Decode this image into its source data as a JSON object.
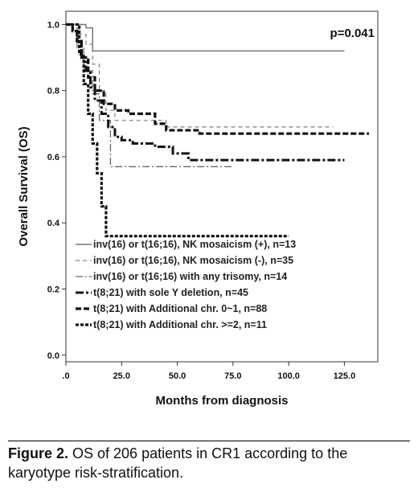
{
  "chart_data": {
    "type": "line",
    "step": true,
    "ylabel": "Overall Survival (OS)",
    "xlabel": "Months from diagnosis",
    "annotation": "p=0.041",
    "xlim": [
      0,
      140
    ],
    "ylim": [
      -0.02,
      1.04
    ],
    "x_ticks": [
      0,
      25,
      50,
      75,
      100,
      125
    ],
    "x_tick_labels": [
      ".0",
      "25.0",
      "50.0",
      "75.0",
      "100.0",
      "125.0"
    ],
    "y_ticks": [
      0,
      0.2,
      0.4,
      0.6,
      0.8,
      1.0
    ],
    "y_tick_labels": [
      "0.0",
      "0.2",
      "0.4",
      "0.6",
      "0.8",
      "1.0"
    ],
    "grid": false,
    "legend_position": "bottom-left",
    "series": [
      {
        "name": "inv(16) or t(16;16), NK mosaicism (+), n=13",
        "color": "#777777",
        "dash": "solid",
        "x": [
          0,
          9,
          12,
          125
        ],
        "y": [
          1.0,
          0.99,
          0.92,
          0.92
        ]
      },
      {
        "name": "inv(16) or t(16;16), NK mosaicism (-), n=35",
        "color": "#888888",
        "dash": "dashed",
        "x": [
          0,
          6,
          9,
          12,
          15,
          18,
          22,
          30,
          45,
          120
        ],
        "y": [
          1.0,
          0.97,
          0.94,
          0.88,
          0.8,
          0.74,
          0.71,
          0.71,
          0.69,
          0.69
        ]
      },
      {
        "name": "inv(16) or t(16;16) with any trisomy, n=14",
        "color": "#666666",
        "dash": "dashdot",
        "x": [
          0,
          5,
          8,
          12,
          15,
          20,
          35,
          75
        ],
        "y": [
          1.0,
          0.93,
          0.86,
          0.79,
          0.71,
          0.57,
          0.57,
          0.57
        ]
      },
      {
        "name": "t(8;21) with sole Y deletion, n=45",
        "color": "#111111",
        "dash": "dashdot-thick",
        "x": [
          0,
          3,
          5,
          7,
          9,
          11,
          13,
          16,
          19,
          22,
          25,
          30,
          40,
          48,
          55,
          70,
          125
        ],
        "y": [
          1.0,
          0.98,
          0.95,
          0.9,
          0.86,
          0.81,
          0.77,
          0.73,
          0.69,
          0.66,
          0.65,
          0.64,
          0.63,
          0.61,
          0.59,
          0.59,
          0.59
        ]
      },
      {
        "name": "t(8;21) with Additional chr. 0~1, n=88",
        "color": "#111111",
        "dash": "dashed-thick",
        "x": [
          0,
          3,
          5,
          7,
          10,
          13,
          17,
          22,
          28,
          40,
          45,
          60,
          136
        ],
        "y": [
          1.0,
          0.98,
          0.95,
          0.9,
          0.84,
          0.8,
          0.76,
          0.74,
          0.73,
          0.7,
          0.68,
          0.67,
          0.67
        ]
      },
      {
        "name": "t(8;21) with Additional chr. >=2, n=11",
        "color": "#111111",
        "dash": "dotted-thick",
        "x": [
          0,
          6,
          8,
          10,
          12,
          14,
          16,
          18,
          100
        ],
        "y": [
          1.0,
          0.91,
          0.82,
          0.73,
          0.64,
          0.55,
          0.45,
          0.36,
          0.36
        ]
      }
    ]
  },
  "caption": {
    "label": "Figure 2.",
    "text": " OS of 206 patients in CR1 according to the karyotype risk-stratification."
  }
}
